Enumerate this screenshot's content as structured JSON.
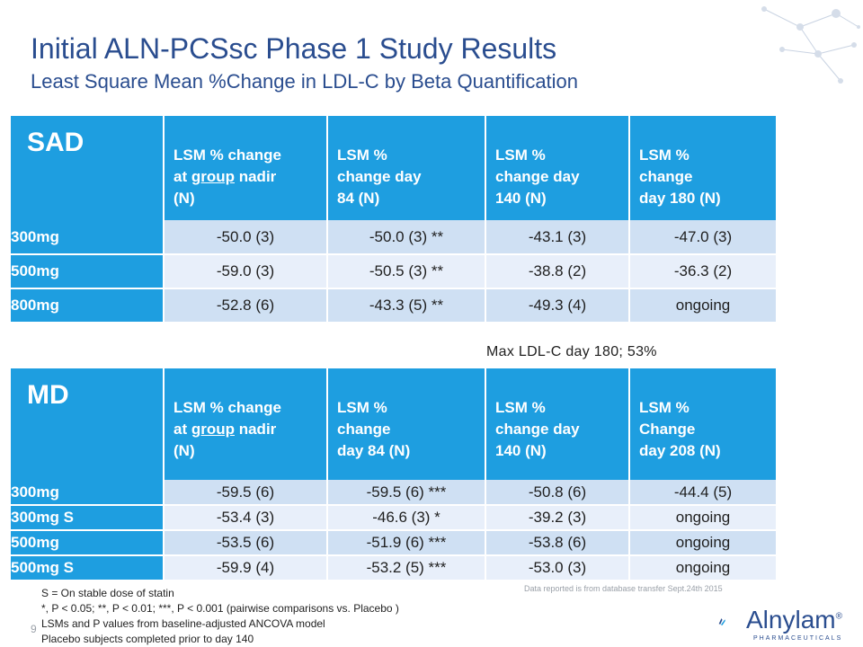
{
  "title": "Initial ALN-PCSsc Phase 1 Study Results",
  "subtitle": "Least Square Mean %Change in LDL-C by Beta Quantification",
  "sad": {
    "label": "SAD",
    "headers": [
      [
        "LSM % change",
        "at ",
        "group",
        " nadir",
        "(N)"
      ],
      [
        "LSM %",
        "change day",
        "84 (N)"
      ],
      [
        "LSM %",
        "change day",
        "140 (N)"
      ],
      [
        "LSM %",
        "change",
        "day 180 (N)"
      ]
    ],
    "rows": [
      {
        "label": "300mg",
        "values": [
          "-50.0 (3)",
          "-50.0 (3) **",
          "-43.1 (3)",
          "-47.0 (3)"
        ]
      },
      {
        "label": "500mg",
        "values": [
          "-59.0 (3)",
          "-50.5 (3) **",
          "-38.8 (2)",
          "-36.3 (2)"
        ]
      },
      {
        "label": "800mg",
        "values": [
          "-52.8 (6)",
          "-43.3 (5) **",
          "-49.3 (4)",
          "ongoing"
        ]
      }
    ]
  },
  "max_note": "Max LDL-C day 180; 53%",
  "md": {
    "label": "MD",
    "headers": [
      [
        "LSM % change",
        "at ",
        "group",
        " nadir",
        "(N)"
      ],
      [
        "LSM %",
        "change",
        "day 84 (N)"
      ],
      [
        "LSM %",
        "change day",
        "140 (N)"
      ],
      [
        "LSM %",
        "Change",
        "day 208 (N)"
      ]
    ],
    "rows": [
      {
        "label": "300mg",
        "values": [
          "-59.5 (6)",
          "-59.5 (6) ***",
          "-50.8 (6)",
          "-44.4 (5)"
        ]
      },
      {
        "label": "300mg S",
        "values": [
          "-53.4 (3)",
          "-46.6 (3) *",
          "-39.2 (3)",
          "ongoing"
        ]
      },
      {
        "label": "500mg",
        "values": [
          "-53.5 (6)",
          "-51.9 (6) ***",
          "-53.8 (6)",
          "ongoing"
        ]
      },
      {
        "label": "500mg S",
        "values": [
          "-59.9 (4)",
          "-53.2 (5) ***",
          "-53.0 (3)",
          "ongoing"
        ]
      }
    ]
  },
  "footnotes": [
    "S = On stable dose of statin",
    "*, P < 0.05; **, P < 0.01; ***, P < 0.001 (pairwise comparisons vs. Placebo )",
    "LSMs and P values from baseline-adjusted  ANCOVA model",
    "Placebo subjects completed prior to day 140"
  ],
  "page_number": "9",
  "data_note": "Data reported is from database transfer Sept.24th 2015",
  "logo": {
    "name": "Alnylam",
    "registered": "®",
    "tagline": "PHARMACEUTICALS"
  },
  "colors": {
    "header_blue": "#1e9ee0",
    "title_blue": "#2a4d8f",
    "row_light": "#cfe0f3",
    "row_lighter": "#e8effa"
  }
}
